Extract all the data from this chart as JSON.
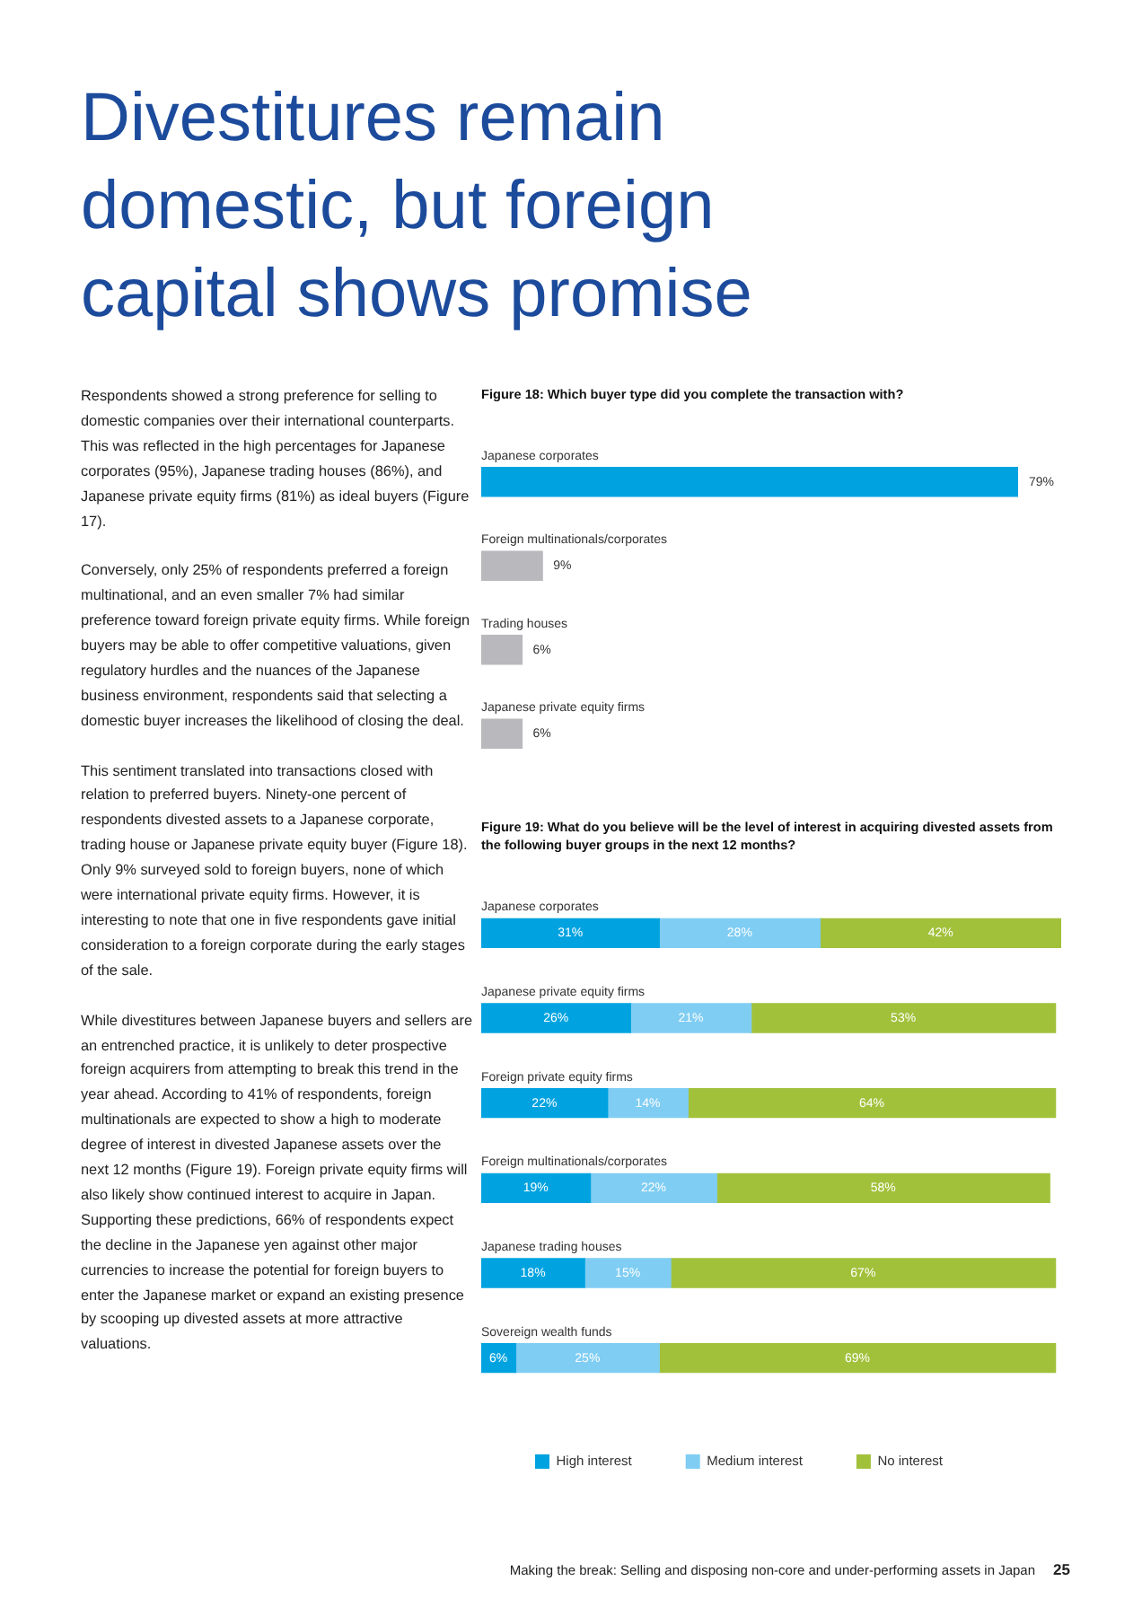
{
  "chart_data": [
    {
      "type": "other",
      "title": "Divestitures remain domestic, but foreign capital shows promise",
      "annotations": [
        "Respondents showed a strong preference for selling to domestic companies over their international counterparts. This was reflected in the high percentages for Japanese corporates (95%), Japanese trading houses (86%), and Japanese private equity firms (81%) as ideal buyers (Figure 17).",
        "Conversely, only 25% of respondents preferred a foreign multinational, and an even smaller 7% had similar preference toward foreign private equity firms. While foreign buyers may be able to offer competitive valuations, given regulatory hurdles and the nuances of the Japanese business environment, respondents said that selecting a domestic buyer increases the likelihood of closing the deal.",
        "This sentiment translated into transactions closed with relation to preferred buyers. Ninety-one percent of respondents divested assets to a Japanese corporate, trading house or Japanese private equity buyer (Figure 18). Only 9% surveyed sold to foreign buyers, none of which were international private equity firms. However, it is interesting to note that one in five respondents gave initial consideration to a foreign corporate during the early stages of the sale.",
        "While divestitures between Japanese buyers and sellers are an entrenched practice, it is unlikely to deter prospective foreign acquirers from attempting to break this trend in the year ahead. According to 41% of respondents, foreign multinationals are expected to show a high to moderate degree of interest in divested Japanese assets over the next 12 months (Figure 19). Foreign private equity firms will also likely show continued interest to acquire in Japan. Supporting these predictions, 66% of respondents expect the decline in the Japanese yen against other major currencies to increase the potential for foreign buyers to enter the Japanese market or expand an existing presence by scooping up divested assets at more attractive valuations.",
        "Making the break: Selling and disposing non-core and under-performing assets in Japan",
        "25"
      ]
    },
    {
      "type": "bar",
      "orientation": "horizontal",
      "title": "Figure 18: Which buyer type did you complete the transaction with?",
      "categories": [
        "Japanese corporates",
        "Foreign multinationals/corporates",
        "Trading houses",
        "Japanese private equity firms"
      ],
      "values": [
        79,
        9,
        6,
        6
      ],
      "colors": [
        "#00a3e0",
        "#b9b9bd",
        "#b9b9bd",
        "#b9b9bd"
      ],
      "value_labels": [
        "79%",
        "9%",
        "6%",
        "6%"
      ],
      "legend": false
    },
    {
      "type": "bar",
      "orientation": "horizontal",
      "stacked": true,
      "title": "Figure 19: What do you believe will be the level of interest in acquiring divested assets from the following buyer groups in the next 12 months?",
      "categories": [
        "Japanese corporates",
        "Japanese private equity firms",
        "Foreign private equity firms",
        "Foreign multinationals/corporates",
        "Japanese trading houses",
        "Sovereign wealth funds"
      ],
      "series": [
        {
          "name": "High interest",
          "color": "#00a3e0",
          "values": [
            31,
            26,
            22,
            19,
            18,
            6
          ],
          "value_labels": [
            "31%",
            "26%",
            "22%",
            "19%",
            "18%",
            "6%"
          ]
        },
        {
          "name": "Medium interest",
          "color": "#7fcdf3",
          "values": [
            28,
            21,
            14,
            22,
            15,
            25
          ],
          "value_labels": [
            "28%",
            "21%",
            "14%",
            "22%",
            "15%",
            "25%"
          ]
        },
        {
          "name": "No interest",
          "color": "#a2c13b",
          "values": [
            42,
            53,
            64,
            58,
            67,
            69
          ],
          "value_labels": [
            "42%",
            "53%",
            "64%",
            "58%",
            "67%",
            "69%"
          ]
        }
      ],
      "legend": "bottom left"
    }
  ]
}
